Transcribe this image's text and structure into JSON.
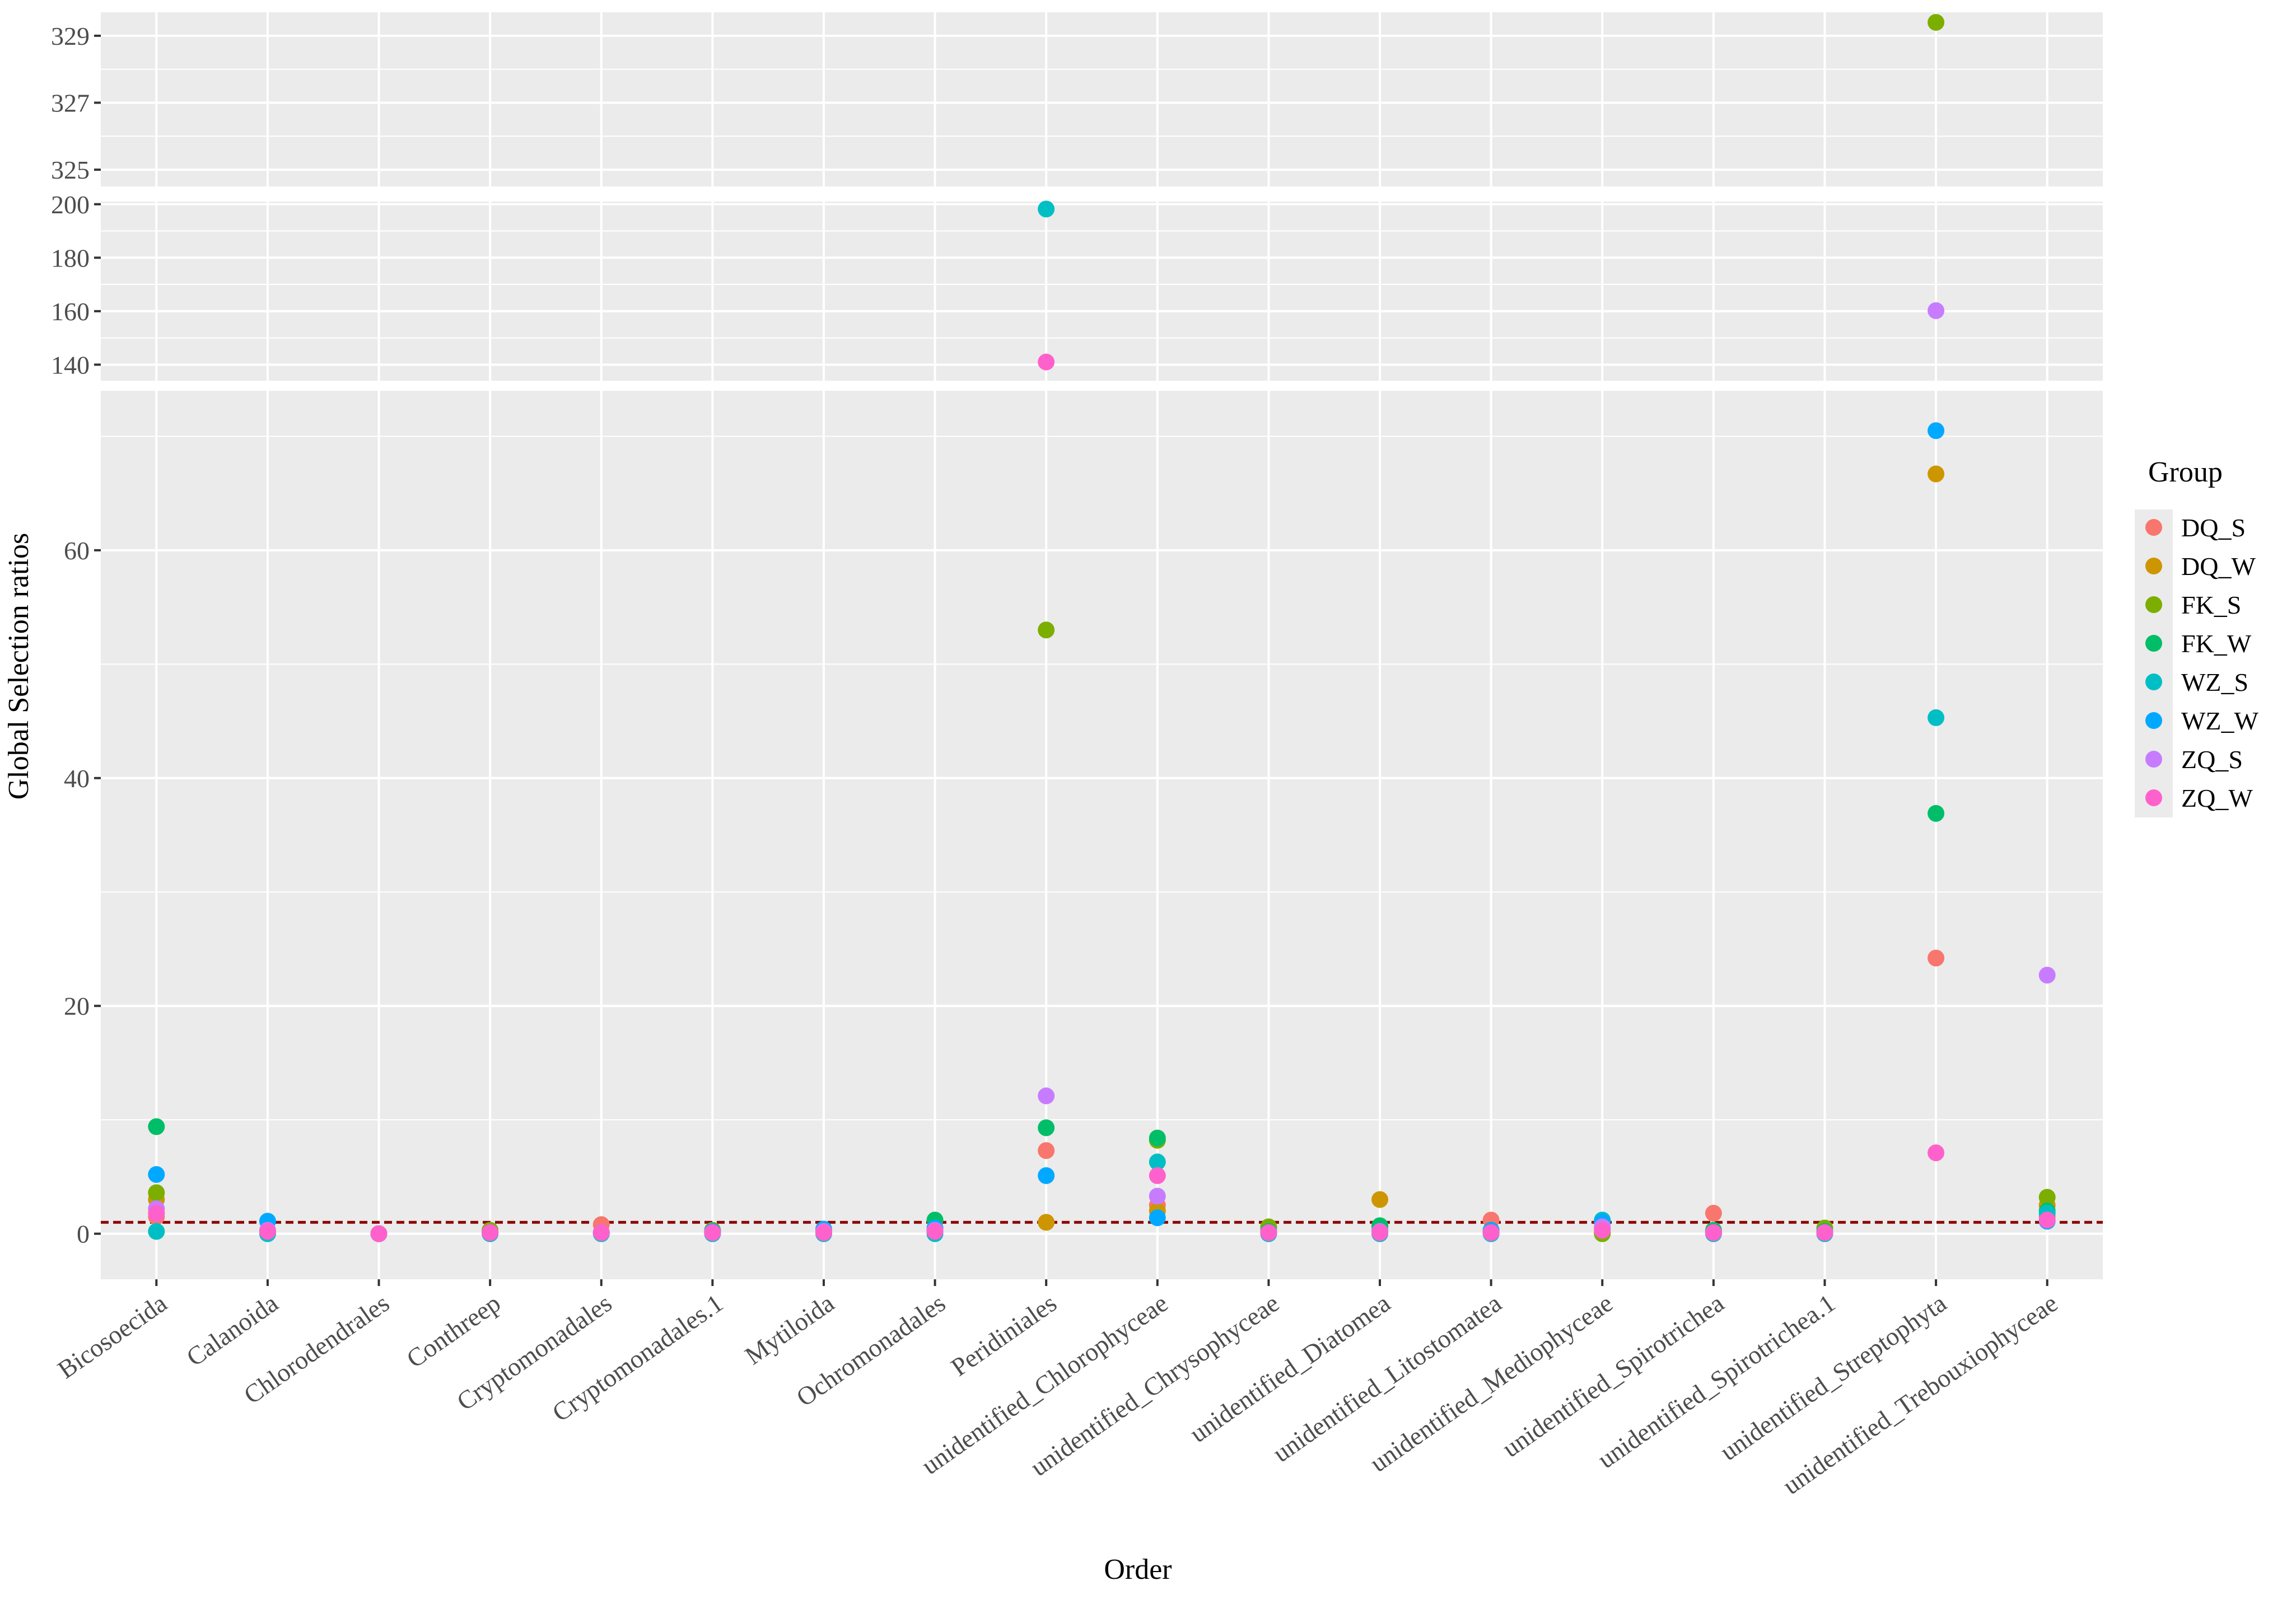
{
  "chart_data": {
    "type": "scatter",
    "xlabel": "Order",
    "ylabel": "Global Selection ratios",
    "reference_line": {
      "y": 1,
      "color": "#8b0000",
      "style": "dashed"
    },
    "categories": [
      "Bicosoecida",
      "Calanoida",
      "Chlorodendrales",
      "Conthreep",
      "Cryptomonadales",
      "Cryptomonadales.1",
      "Mytiloida",
      "Ochromonadales",
      "Peridiniales",
      "unidentified_Chlorophyceae",
      "unidentified_Chrysophyceae",
      "unidentified_Diatomea",
      "unidentified_Litostomatea",
      "unidentified_Mediophyceae",
      "unidentified_Spirotrichea",
      "unidentified_Spirotrichea.1",
      "unidentified_Streptophyta",
      "unidentified_Trebouxiophyceae"
    ],
    "panels": [
      {
        "name": "top",
        "ylim": [
          324.5,
          329.7
        ],
        "ticks": [
          325,
          327,
          329
        ]
      },
      {
        "name": "middle",
        "ylim": [
          134,
          201
        ],
        "ticks": [
          140,
          160,
          180,
          200
        ]
      },
      {
        "name": "bottom",
        "ylim": [
          -4,
          74
        ],
        "ticks": [
          0,
          20,
          40,
          60
        ]
      }
    ],
    "legend": {
      "title": "Group",
      "position": "right"
    },
    "series": [
      {
        "name": "DQ_S",
        "color": "#F8766D",
        "values": [
          1.5,
          0.2,
          0,
          0.1,
          0.8,
          0.1,
          0.2,
          0.4,
          7.3,
          2.5,
          0.1,
          0.3,
          1.2,
          0.1,
          1.8,
          0.1,
          24.2,
          1.5
        ]
      },
      {
        "name": "DQ_W",
        "color": "#CD9600",
        "values": [
          3.0,
          0.1,
          0,
          0.1,
          0.1,
          0.1,
          0.1,
          0.3,
          1.0,
          2.0,
          0.5,
          3.0,
          0.2,
          0.1,
          0.2,
          0.2,
          66.7,
          2.5
        ]
      },
      {
        "name": "FK_S",
        "color": "#7CAE00",
        "values": [
          3.6,
          0.2,
          0,
          0.3,
          0.1,
          0.3,
          0.3,
          0.2,
          53.0,
          8.2,
          0.6,
          0.6,
          0.1,
          0.0,
          0.2,
          0.5,
          329.4,
          3.2
        ]
      },
      {
        "name": "FK_W",
        "color": "#00BE67",
        "values": [
          9.4,
          0.2,
          0,
          0.1,
          0.1,
          0.2,
          0.3,
          1.2,
          9.3,
          8.4,
          0.2,
          0.7,
          0.3,
          0.4,
          0.3,
          0.2,
          36.9,
          2.0
        ]
      },
      {
        "name": "WZ_S",
        "color": "#00BFC4",
        "values": [
          0.2,
          0.0,
          0.0,
          0.0,
          0.0,
          0.0,
          0.0,
          0.0,
          198.2,
          6.3,
          0.0,
          0.0,
          0.0,
          1.2,
          0.0,
          0.0,
          45.3,
          1.8
        ]
      },
      {
        "name": "WZ_W",
        "color": "#00A9FF",
        "values": [
          5.2,
          1.1,
          0,
          0.1,
          0.1,
          0.2,
          0.4,
          0.5,
          5.1,
          1.4,
          0.1,
          0.2,
          0.3,
          1.0,
          0.1,
          0.1,
          70.5,
          1.1
        ]
      },
      {
        "name": "ZQ_S",
        "color": "#C77CFF",
        "values": [
          2.2,
          0.3,
          0,
          0.1,
          0.1,
          0.1,
          0.2,
          0.3,
          12.1,
          3.3,
          0.1,
          0.2,
          0.1,
          0.6,
          0.1,
          0.1,
          160.2,
          22.7
        ]
      },
      {
        "name": "ZQ_W",
        "color": "#FF61CC",
        "values": [
          1.8,
          0.2,
          0,
          0.1,
          0.1,
          0.1,
          0.1,
          0.2,
          141.0,
          5.1,
          0.1,
          0.1,
          0.1,
          0.3,
          0.1,
          0.1,
          7.1,
          1.2
        ]
      }
    ]
  }
}
